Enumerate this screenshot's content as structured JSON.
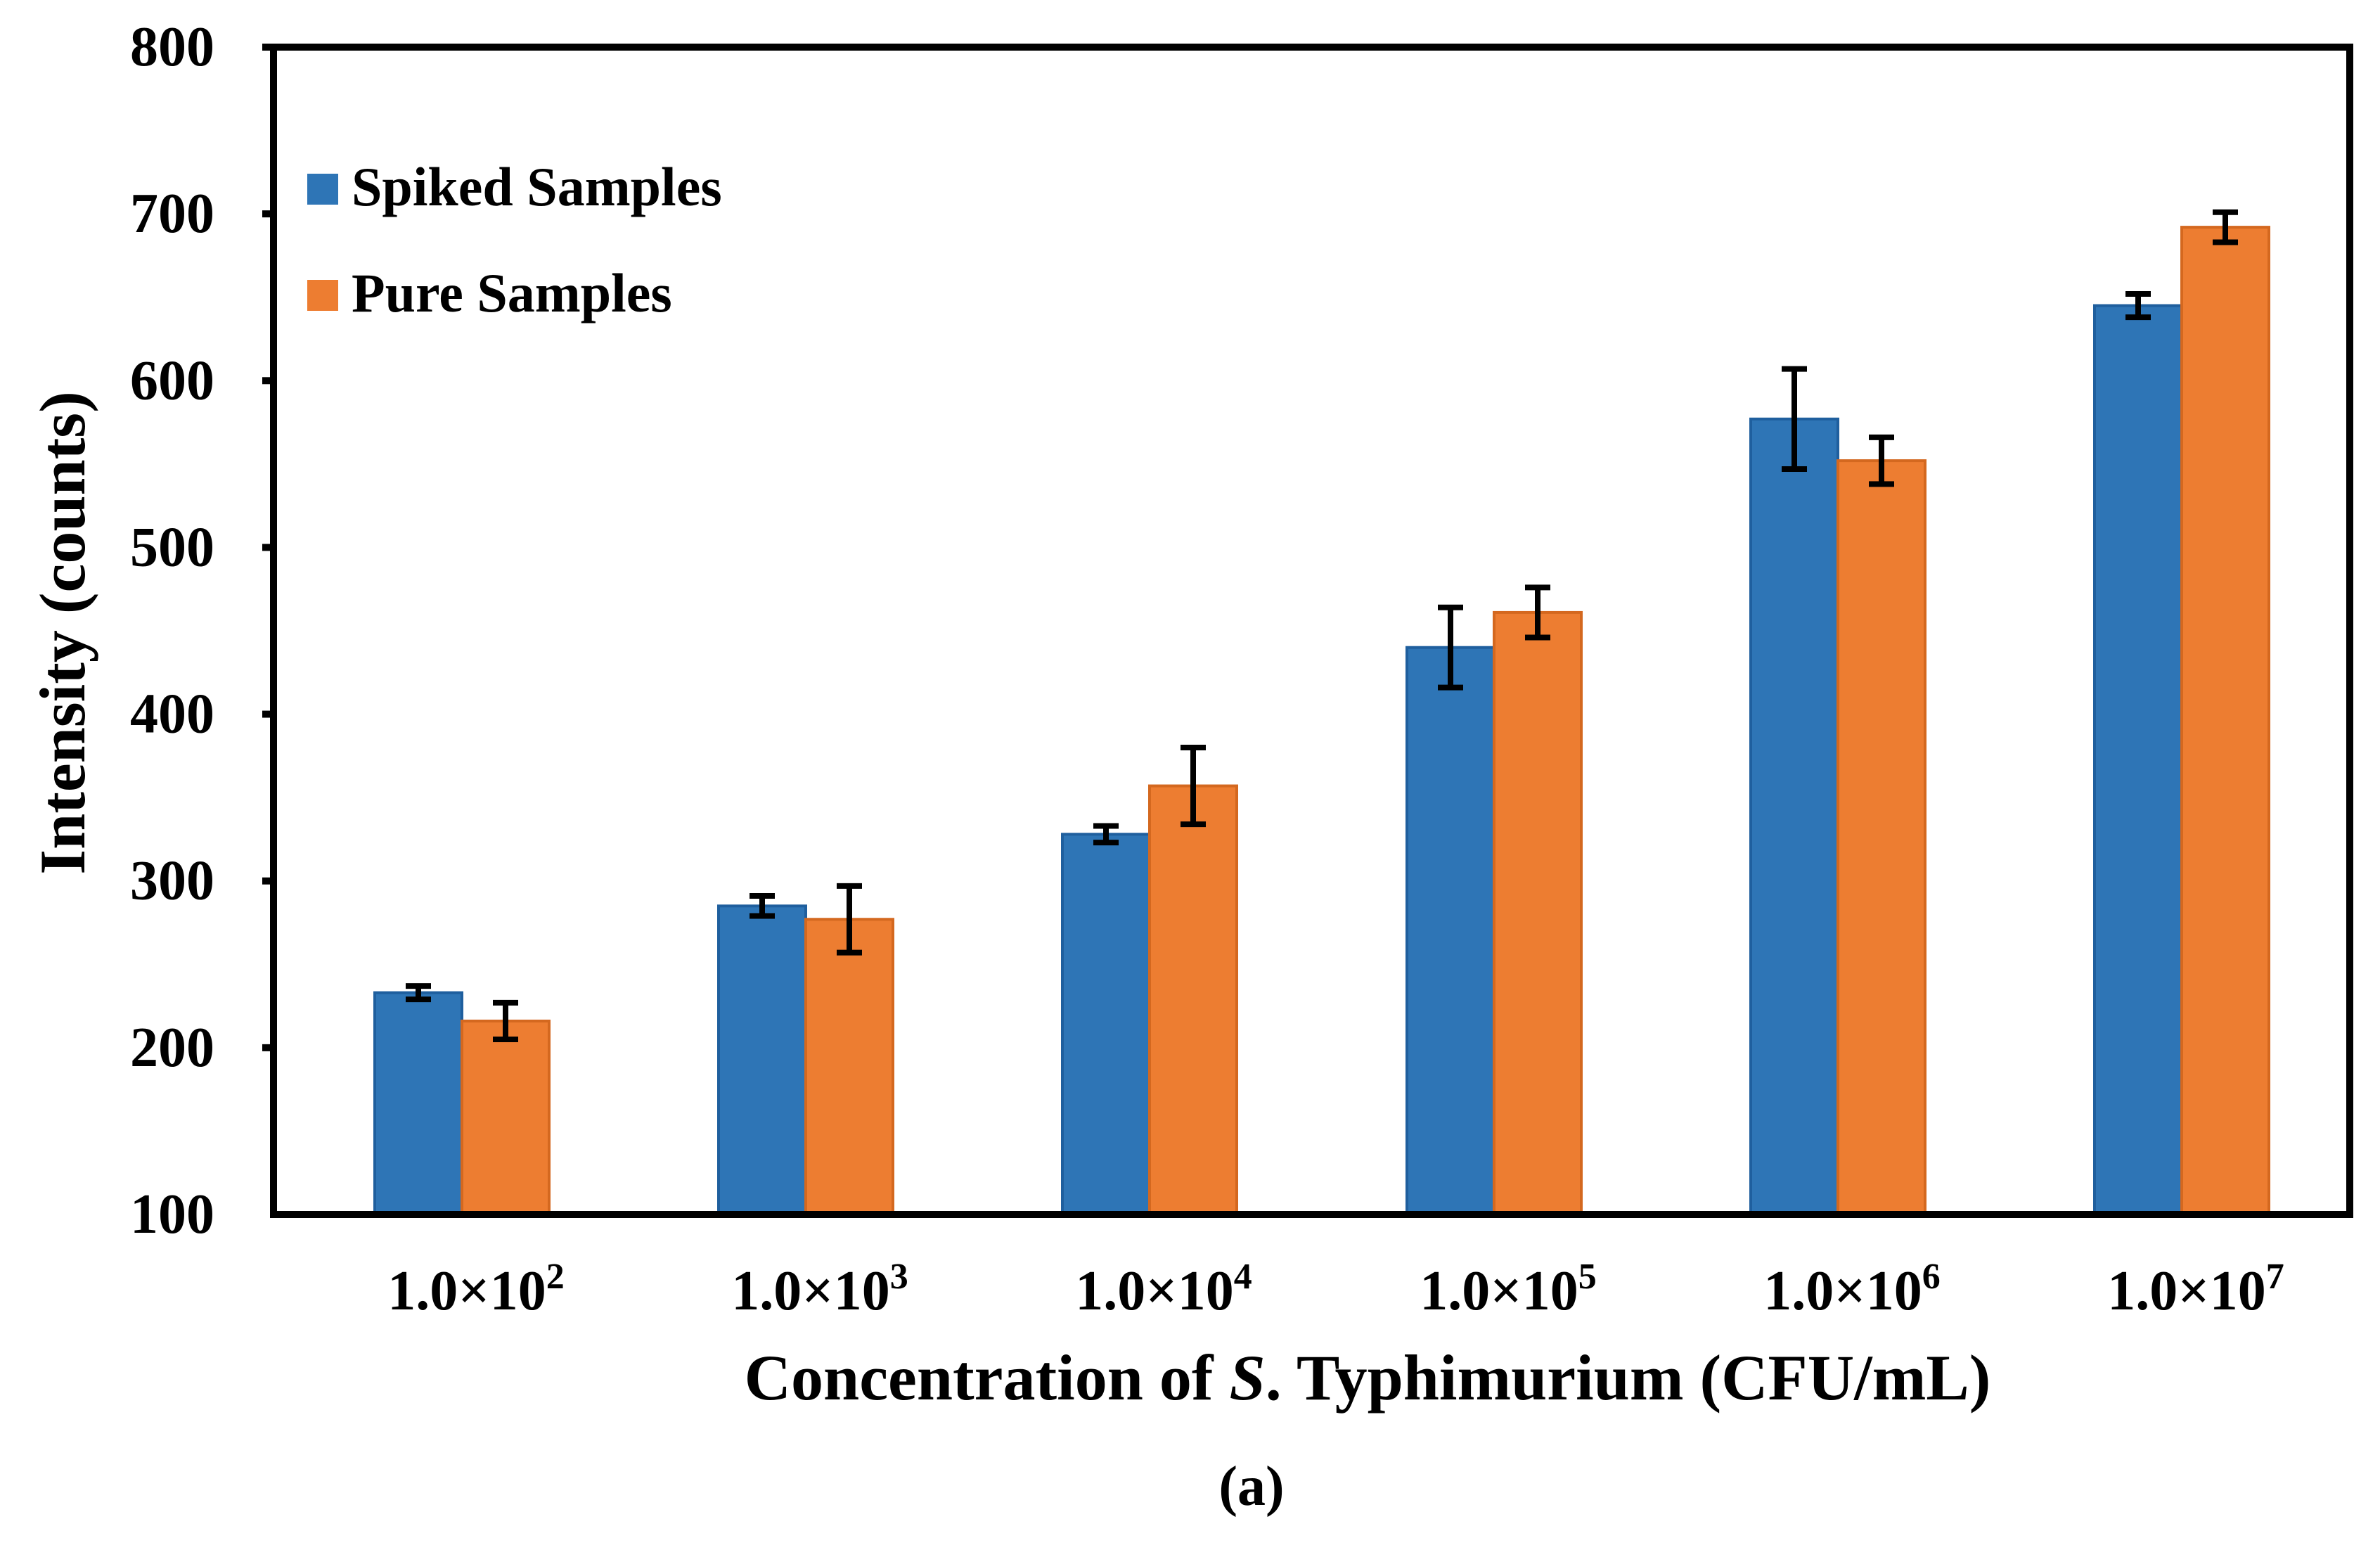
{
  "chart_data": {
    "type": "bar",
    "title": "",
    "categories": [
      {
        "base": "1.0×10",
        "exp": "2"
      },
      {
        "base": "1.0×10",
        "exp": "3"
      },
      {
        "base": "1.0×10",
        "exp": "4"
      },
      {
        "base": "1.0×10",
        "exp": "5"
      },
      {
        "base": "1.0×10",
        "exp": "6"
      },
      {
        "base": "1.0×10",
        "exp": "7"
      }
    ],
    "series": [
      {
        "name": "Spiked Samples",
        "color": "#2E75B6",
        "values": [
          233,
          285,
          328,
          440,
          577,
          645
        ],
        "errors": [
          4,
          6,
          5,
          24,
          30,
          7
        ]
      },
      {
        "name": "Pure Samples",
        "color": "#ED7D31",
        "values": [
          216,
          277,
          357,
          461,
          552,
          692
        ],
        "errors": [
          11,
          20,
          23,
          15,
          14,
          9
        ]
      }
    ],
    "xlabel": {
      "before": "Concentration of ",
      "italic": "S",
      "after": ". Typhimurium (CFU/mL)"
    },
    "ylabel": "Intensity (counts)",
    "ylim": [
      100,
      800
    ],
    "yticks": [
      100,
      200,
      300,
      400,
      500,
      600,
      700,
      800
    ],
    "legend": "top-left",
    "grid": false,
    "caption": "(a)"
  }
}
